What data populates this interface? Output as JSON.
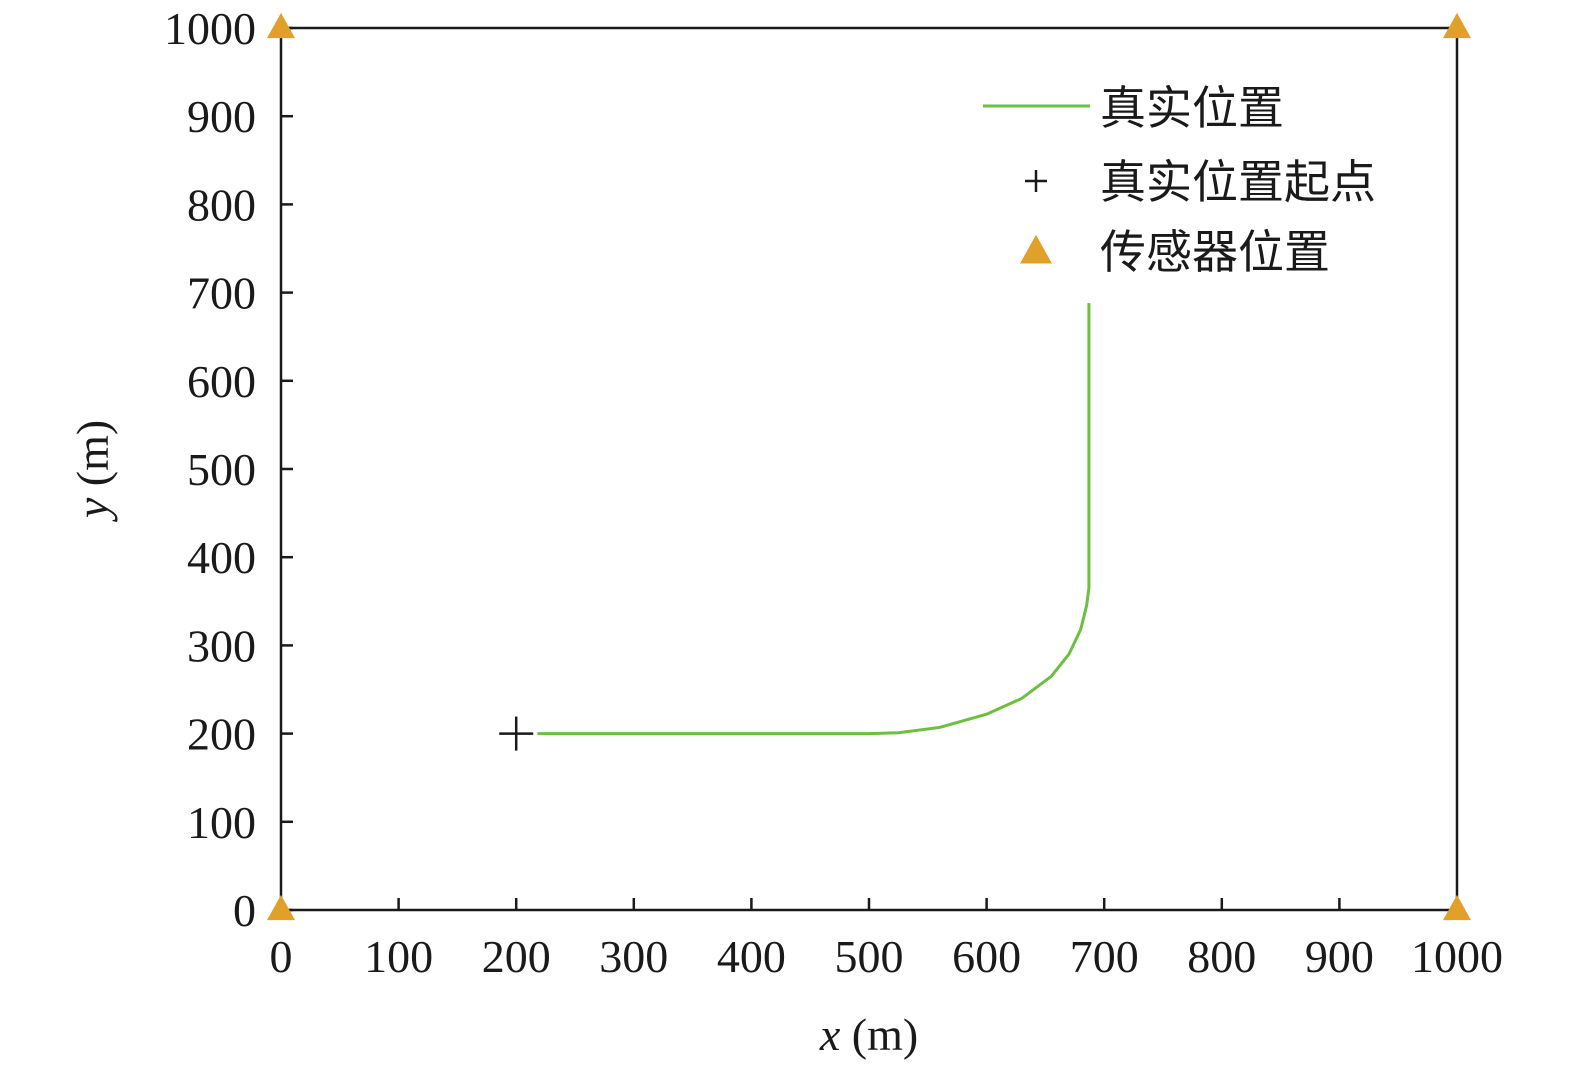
{
  "chart_data": {
    "type": "line",
    "xlabel_var": "x",
    "xlabel_unit": " (m)",
    "ylabel_var": "y",
    "ylabel_unit": " (m)",
    "xlim": [
      0,
      1000
    ],
    "ylim": [
      0,
      1000
    ],
    "x_ticks": [
      0,
      100,
      200,
      300,
      400,
      500,
      600,
      700,
      800,
      900,
      1000
    ],
    "y_ticks": [
      0,
      100,
      200,
      300,
      400,
      500,
      600,
      700,
      800,
      900,
      1000
    ],
    "grid": false,
    "legend_position": "top-right",
    "series": [
      {
        "name": "真实位置",
        "kind": "line",
        "color": "#6cbf3f",
        "x": [
          218,
          300,
          400,
          500,
          525,
          560,
          600,
          630,
          655,
          670,
          680,
          685,
          687,
          687,
          687
        ],
        "y": [
          200,
          200,
          200,
          200,
          201,
          207,
          222,
          240,
          265,
          290,
          318,
          345,
          365,
          500,
          688
        ]
      },
      {
        "name": "真实位置起点",
        "kind": "marker",
        "marker": "plus",
        "color": "#1a1a1a",
        "x": [
          200
        ],
        "y": [
          200
        ]
      },
      {
        "name": "传感器位置",
        "kind": "marker",
        "marker": "triangle",
        "color": "#e0a02a",
        "x": [
          0,
          1000,
          0,
          1000
        ],
        "y": [
          1000,
          1000,
          0,
          0
        ]
      }
    ]
  }
}
